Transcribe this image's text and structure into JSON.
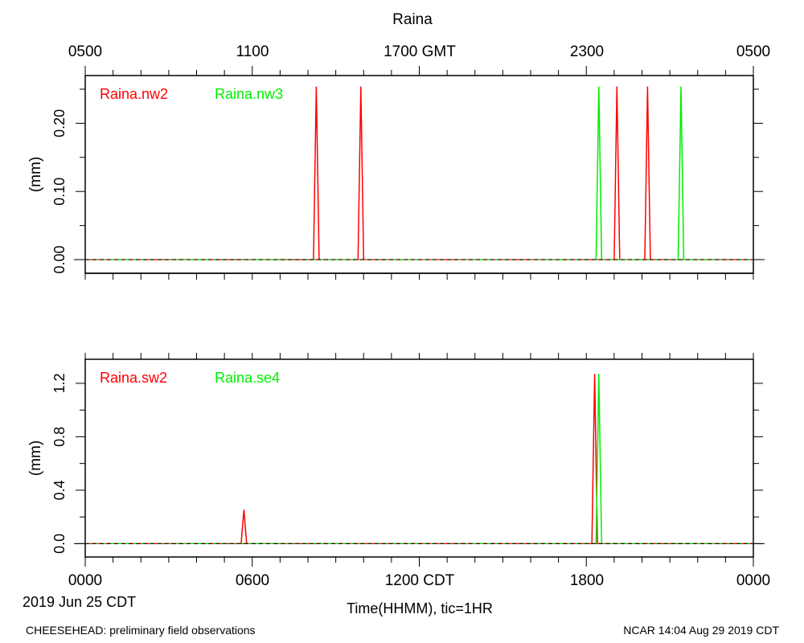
{
  "title": "Raina",
  "top_axis_labels": [
    "0500",
    "1100",
    "1700 GMT",
    "2300",
    "0500"
  ],
  "bottom_axis_labels": [
    "0000",
    "0600",
    "1200 CDT",
    "1800",
    "0000"
  ],
  "date_label": "2019 Jun 25 CDT",
  "xlabel": "Time(HHMM), tic=1HR",
  "footer_left": "CHEESEHEAD: preliminary field observations",
  "footer_right": "NCAR 14:04 Aug 29 2019 CDT",
  "colors": {
    "red": "#ff0000",
    "green": "#00ee00",
    "axis": "#000000"
  },
  "chart_data": [
    {
      "type": "line",
      "ylabel": "(mm)",
      "ylim": [
        -0.02,
        0.27
      ],
      "yticks": [
        0.0,
        0.1,
        0.2
      ],
      "ytick_labels": [
        "0.00",
        "0.10",
        "0.20"
      ],
      "xlim_hours": [
        0,
        24
      ],
      "legend_placement": "top-left",
      "series": [
        {
          "name": "Raina.nw2",
          "color": "#ff0000",
          "spikes": [
            {
              "hour": 8.3,
              "value": 0.254
            },
            {
              "hour": 9.9,
              "value": 0.254
            },
            {
              "hour": 19.1,
              "value": 0.254
            },
            {
              "hour": 20.2,
              "value": 0.254
            }
          ]
        },
        {
          "name": "Raina.nw3",
          "color": "#00ee00",
          "spikes": [
            {
              "hour": 18.45,
              "value": 0.254
            },
            {
              "hour": 21.4,
              "value": 0.254
            }
          ]
        }
      ]
    },
    {
      "type": "line",
      "ylabel": "(mm)",
      "ylim": [
        -0.1,
        1.38
      ],
      "yticks": [
        0.0,
        0.4,
        0.8,
        1.2
      ],
      "ytick_labels": [
        "0.0",
        "0.4",
        "0.8",
        "1.2"
      ],
      "xlim_hours": [
        0,
        24
      ],
      "legend_placement": "top-left",
      "series": [
        {
          "name": "Raina.sw2",
          "color": "#ff0000",
          "spikes": [
            {
              "hour": 5.7,
              "value": 0.254
            },
            {
              "hour": 18.3,
              "value": 1.27
            }
          ]
        },
        {
          "name": "Raina.se4",
          "color": "#00ee00",
          "spikes": [
            {
              "hour": 18.45,
              "value": 1.27
            }
          ]
        }
      ]
    }
  ]
}
